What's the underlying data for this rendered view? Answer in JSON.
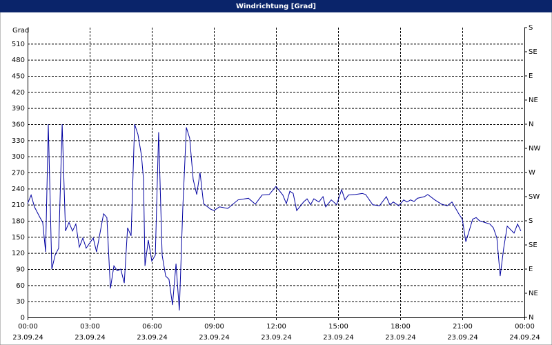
{
  "chart_data": {
    "type": "line",
    "title": "Windrichtung [Grad]",
    "ylabel": "Grad",
    "xlim": [
      0,
      24
    ],
    "xticks": [
      {
        "value": 0,
        "label": "00:00",
        "date": "23.09.24"
      },
      {
        "value": 3,
        "label": "03:00",
        "date": "23.09.24"
      },
      {
        "value": 6,
        "label": "06:00",
        "date": "23.09.24"
      },
      {
        "value": 9,
        "label": "09:00",
        "date": "23.09.24"
      },
      {
        "value": 12,
        "label": "12:00",
        "date": "23.09.24"
      },
      {
        "value": 15,
        "label": "15:00",
        "date": "23.09.24"
      },
      {
        "value": 18,
        "label": "18:00",
        "date": "23.09.24"
      },
      {
        "value": 21,
        "label": "21:00",
        "date": "23.09.24"
      },
      {
        "value": 24,
        "label": "00:00",
        "date": "24.09.24"
      }
    ],
    "ylim": [
      0,
      540
    ],
    "yticks": [
      0,
      30,
      60,
      90,
      120,
      150,
      180,
      210,
      240,
      270,
      300,
      330,
      360,
      390,
      420,
      450,
      480,
      510
    ],
    "y2lim": [
      0,
      540
    ],
    "y2ticks": [
      {
        "value": 0,
        "label": "N"
      },
      {
        "value": 45,
        "label": "NE"
      },
      {
        "value": 90,
        "label": "E"
      },
      {
        "value": 135,
        "label": "SE"
      },
      {
        "value": 180,
        "label": "S"
      },
      {
        "value": 225,
        "label": "SW"
      },
      {
        "value": 270,
        "label": "W"
      },
      {
        "value": 315,
        "label": "NW"
      },
      {
        "value": 360,
        "label": "N"
      },
      {
        "value": 405,
        "label": "NE"
      },
      {
        "value": 450,
        "label": "E"
      },
      {
        "value": 495,
        "label": "SE"
      },
      {
        "value": 540,
        "label": "S"
      }
    ],
    "grid": true,
    "series": [
      {
        "color": "#0000a0",
        "x": [
          0,
          0.17,
          0.33,
          0.6,
          0.73,
          0.87,
          1.0,
          1.17,
          1.33,
          1.5,
          1.67,
          1.83,
          2.0,
          2.17,
          2.33,
          2.5,
          2.67,
          2.83,
          3.17,
          3.33,
          3.67,
          3.83,
          4.0,
          4.17,
          4.33,
          4.5,
          4.67,
          4.83,
          5.0,
          5.17,
          5.33,
          5.5,
          5.6,
          5.67,
          5.83,
          6.0,
          6.17,
          6.33,
          6.5,
          6.67,
          6.83,
          7.0,
          7.17,
          7.33,
          7.5,
          7.67,
          7.83,
          8.0,
          8.17,
          8.33,
          8.5,
          8.83,
          9.0,
          9.27,
          9.67,
          10.17,
          10.67,
          11.0,
          11.33,
          11.67,
          12.0,
          12.33,
          12.5,
          12.67,
          12.83,
          13.0,
          13.33,
          13.5,
          13.67,
          13.83,
          14.07,
          14.27,
          14.4,
          14.67,
          14.93,
          15.17,
          15.33,
          15.5,
          15.83,
          16.17,
          16.33,
          16.67,
          17.0,
          17.33,
          17.5,
          17.67,
          17.93,
          18.17,
          18.33,
          18.5,
          18.67,
          18.83,
          19.17,
          19.33,
          19.67,
          20.0,
          20.27,
          20.5,
          20.83,
          21.0,
          21.17,
          21.33,
          21.5,
          21.67,
          21.83,
          22.33,
          22.5,
          22.67,
          22.83,
          23.0,
          23.17,
          23.5,
          23.67,
          23.83
        ],
        "values": [
          212,
          228,
          206,
          186,
          177,
          122,
          360,
          90,
          116,
          129,
          360,
          161,
          177,
          161,
          174,
          131,
          148,
          129,
          148,
          122,
          193,
          186,
          54,
          96,
          87,
          90,
          64,
          167,
          152,
          360,
          341,
          302,
          257,
          96,
          144,
          105,
          116,
          345,
          116,
          77,
          71,
          23,
          100,
          13,
          206,
          354,
          334,
          257,
          229,
          270,
          212,
          202,
          199,
          206,
          203,
          219,
          222,
          211,
          228,
          229,
          244,
          228,
          212,
          235,
          231,
          199,
          215,
          221,
          210,
          221,
          215,
          225,
          206,
          219,
          210,
          238,
          219,
          228,
          229,
          231,
          229,
          210,
          208,
          225,
          210,
          215,
          208,
          219,
          215,
          219,
          216,
          222,
          225,
          229,
          219,
          211,
          208,
          215,
          193,
          183,
          141,
          161,
          183,
          186,
          180,
          174,
          167,
          148,
          77,
          129,
          170,
          157,
          174,
          161
        ]
      }
    ]
  }
}
